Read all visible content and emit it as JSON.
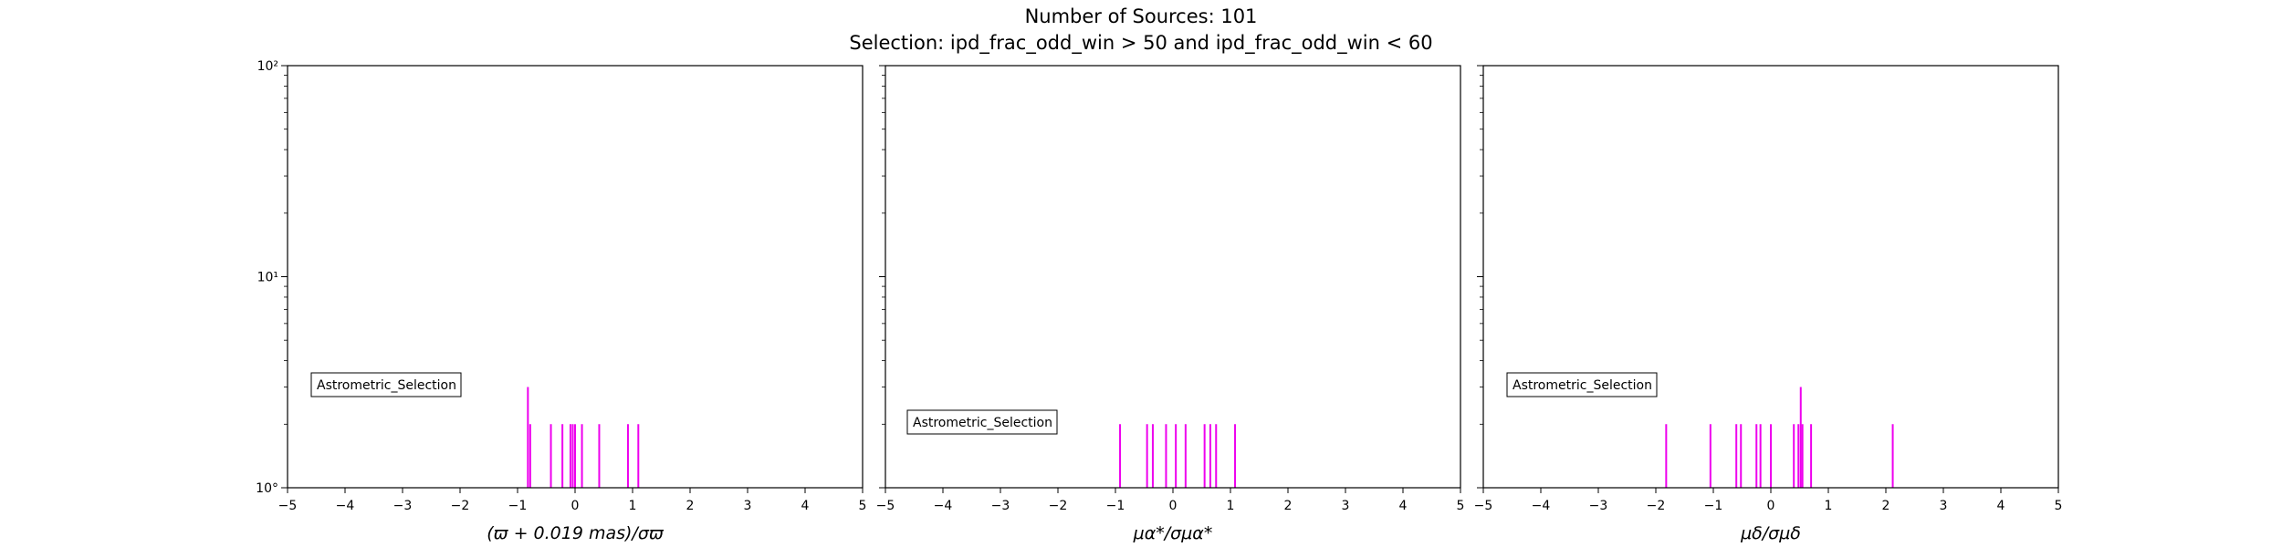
{
  "title": "Number of Sources: 101",
  "subtitle": "Selection: ipd_frac_odd_win > 50 and ipd_frac_odd_win < 60",
  "colors": {
    "bars": "#ee00ee",
    "axes": "#000000",
    "legend_border": "#000000"
  },
  "chart_data": [
    {
      "type": "bar",
      "xlabel": "(ϖ + 0.019 mas)/σϖ",
      "xlim": [
        -5,
        5
      ],
      "ylim": [
        1,
        100
      ],
      "yscale": "log",
      "xticks": [
        "−5",
        "−4",
        "−3",
        "−2",
        "−1",
        "0",
        "1",
        "2",
        "3",
        "4",
        "5"
      ],
      "yticks": [
        "10°",
        "10¹",
        "10²"
      ],
      "legend": "Astrometric_Selection",
      "legend_position": "lower-left",
      "bars": [
        {
          "x": -0.82,
          "count": 3
        },
        {
          "x": -0.78,
          "count": 2
        },
        {
          "x": -0.42,
          "count": 2
        },
        {
          "x": -0.22,
          "count": 2
        },
        {
          "x": -0.08,
          "count": 2
        },
        {
          "x": -0.04,
          "count": 2
        },
        {
          "x": 0.0,
          "count": 2
        },
        {
          "x": 0.12,
          "count": 2
        },
        {
          "x": 0.42,
          "count": 2
        },
        {
          "x": 0.92,
          "count": 2
        },
        {
          "x": 1.1,
          "count": 2
        }
      ]
    },
    {
      "type": "bar",
      "xlabel": "μα*/σμα*",
      "xlim": [
        -5,
        5
      ],
      "ylim": [
        1,
        100
      ],
      "yscale": "log",
      "xticks": [
        "−5",
        "−4",
        "−3",
        "−2",
        "−1",
        "0",
        "1",
        "2",
        "3",
        "4",
        "5"
      ],
      "legend": "Astrometric_Selection",
      "legend_position": "lower-left",
      "bars": [
        {
          "x": -0.92,
          "count": 2
        },
        {
          "x": -0.45,
          "count": 2
        },
        {
          "x": -0.35,
          "count": 2
        },
        {
          "x": -0.12,
          "count": 2
        },
        {
          "x": 0.05,
          "count": 2
        },
        {
          "x": 0.22,
          "count": 2
        },
        {
          "x": 0.55,
          "count": 2
        },
        {
          "x": 0.65,
          "count": 2
        },
        {
          "x": 0.75,
          "count": 2
        },
        {
          "x": 1.08,
          "count": 2
        }
      ]
    },
    {
      "type": "bar",
      "xlabel": "μδ/σμδ",
      "xlim": [
        -5,
        5
      ],
      "ylim": [
        1,
        100
      ],
      "yscale": "log",
      "xticks": [
        "−5",
        "−4",
        "−3",
        "−2",
        "−1",
        "0",
        "1",
        "2",
        "3",
        "4",
        "5"
      ],
      "legend": "Astrometric_Selection",
      "legend_position": "lower-left",
      "bars": [
        {
          "x": -1.82,
          "count": 2
        },
        {
          "x": -1.05,
          "count": 2
        },
        {
          "x": -0.6,
          "count": 2
        },
        {
          "x": -0.52,
          "count": 2
        },
        {
          "x": -0.25,
          "count": 2
        },
        {
          "x": -0.18,
          "count": 2
        },
        {
          "x": 0.0,
          "count": 2
        },
        {
          "x": 0.4,
          "count": 2
        },
        {
          "x": 0.48,
          "count": 2
        },
        {
          "x": 0.52,
          "count": 3
        },
        {
          "x": 0.55,
          "count": 2
        },
        {
          "x": 0.7,
          "count": 2
        },
        {
          "x": 2.12,
          "count": 2
        }
      ]
    }
  ]
}
